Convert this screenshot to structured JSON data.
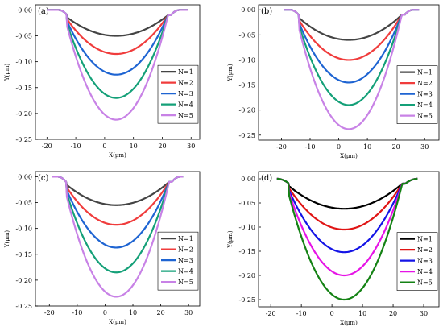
{
  "figure": {
    "panels": [
      "a",
      "b",
      "c",
      "d"
    ]
  },
  "chart_data": [
    {
      "type": "line",
      "panel_label": "(a)",
      "xlabel": "X(μm)",
      "ylabel": "Y(μm)",
      "xlim": [
        -24,
        33
      ],
      "ylim": [
        -0.25,
        0.01
      ],
      "xticks": [
        "-20",
        "-10",
        "0",
        "10",
        "20",
        "30"
      ],
      "yticks": [
        "0.00",
        "-0.05",
        "-0.10",
        "-0.15",
        "-0.20",
        "-0.25"
      ],
      "legend_position": "right",
      "profile": {
        "x_left": -13,
        "x_right": 23,
        "x_flat_left": -16,
        "x_flat_right": 26,
        "x_end_left": -20,
        "x_end_right": 29
      },
      "series": [
        {
          "name": "N=1",
          "min_y": -0.05,
          "color": "#444444"
        },
        {
          "name": "N=2",
          "min_y": -0.085,
          "color": "#f03c3c"
        },
        {
          "name": "N=3",
          "min_y": -0.125,
          "color": "#1e64d2"
        },
        {
          "name": "N=4",
          "min_y": -0.17,
          "color": "#14a078"
        },
        {
          "name": "N=5",
          "min_y": -0.212,
          "color": "#c882e6"
        }
      ]
    },
    {
      "type": "line",
      "panel_label": "(b)",
      "xlabel": "X(μm)",
      "ylabel": "Y(μm)",
      "xlim": [
        -28,
        35
      ],
      "ylim": [
        -0.26,
        0.01
      ],
      "xticks": [
        "-20",
        "-10",
        "0",
        "10",
        "20",
        "30"
      ],
      "yticks": [
        "0.00",
        "-0.05",
        "-0.10",
        "-0.15",
        "-0.20",
        "-0.25"
      ],
      "legend_position": "right",
      "profile": {
        "x_left": -14,
        "x_right": 23,
        "x_flat_left": -17,
        "x_flat_right": 26,
        "x_end_left": -19,
        "x_end_right": 28
      },
      "series": [
        {
          "name": "N=1",
          "min_y": -0.06,
          "color": "#444444"
        },
        {
          "name": "N=2",
          "min_y": -0.1,
          "color": "#f03c3c"
        },
        {
          "name": "N=3",
          "min_y": -0.145,
          "color": "#1e64d2"
        },
        {
          "name": "N=4",
          "min_y": -0.19,
          "color": "#14a078"
        },
        {
          "name": "N=5",
          "min_y": -0.238,
          "color": "#c882e6"
        }
      ]
    },
    {
      "type": "line",
      "panel_label": "(c)",
      "xlabel": "X(μm)",
      "ylabel": "Y(μm)",
      "xlim": [
        -25,
        34
      ],
      "ylim": [
        -0.25,
        0.01
      ],
      "xticks": [
        "-20",
        "-10",
        "0",
        "10",
        "20",
        "30"
      ],
      "yticks": [
        "0.00",
        "-0.05",
        "-0.10",
        "-0.15",
        "-0.20",
        "-0.25"
      ],
      "legend_position": "right",
      "profile": {
        "x_left": -14,
        "x_right": 24,
        "x_flat_left": -17,
        "x_flat_right": 27,
        "x_end_left": -19,
        "x_end_right": 28
      },
      "series": [
        {
          "name": "N=1",
          "min_y": -0.055,
          "color": "#444444"
        },
        {
          "name": "N=2",
          "min_y": -0.093,
          "color": "#f03c3c"
        },
        {
          "name": "N=3",
          "min_y": -0.137,
          "color": "#1e64d2"
        },
        {
          "name": "N=4",
          "min_y": -0.185,
          "color": "#14a078"
        },
        {
          "name": "N=5",
          "min_y": -0.232,
          "color": "#c882e6"
        }
      ]
    },
    {
      "type": "line",
      "panel_label": "(d)",
      "xlabel": "X(μm)",
      "ylabel": "Y(μm)",
      "xlim": [
        -24,
        35
      ],
      "ylim": [
        -0.265,
        0.015
      ],
      "xticks": [
        "-20",
        "-10",
        "0",
        "10",
        "20",
        "30"
      ],
      "yticks": [
        "0.00",
        "-0.05",
        "-0.10",
        "-0.15",
        "-0.20",
        "-0.25"
      ],
      "legend_position": "right",
      "profile": {
        "x_left": -14,
        "x_right": 24,
        "x_flat_left": -18,
        "x_flat_right": 28,
        "x_end_left": -18,
        "x_end_right": 28
      },
      "series": [
        {
          "name": "N=1",
          "min_y": -0.062,
          "color": "#000000"
        },
        {
          "name": "N=2",
          "min_y": -0.105,
          "color": "#e01414"
        },
        {
          "name": "N=3",
          "min_y": -0.152,
          "color": "#1414e6"
        },
        {
          "name": "N=4",
          "min_y": -0.2,
          "color": "#e614e6"
        },
        {
          "name": "N=5",
          "min_y": -0.25,
          "color": "#148214"
        }
      ]
    }
  ]
}
